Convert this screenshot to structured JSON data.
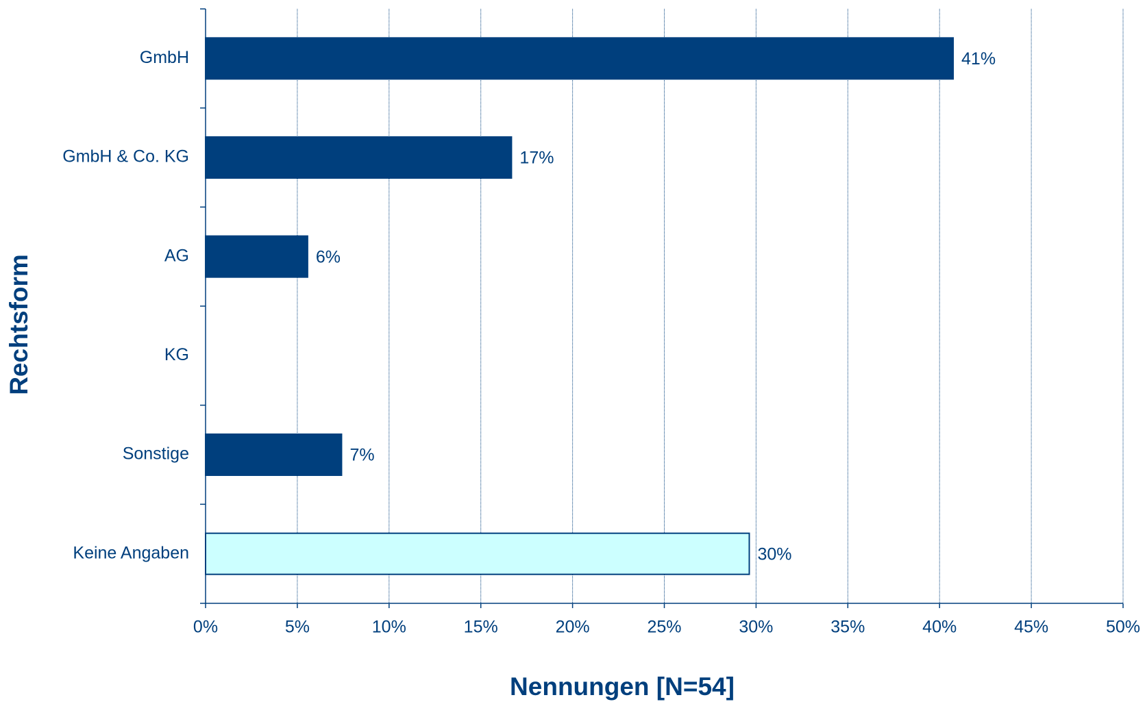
{
  "chart_data": {
    "type": "bar",
    "orientation": "horizontal",
    "xlabel": "Nennungen [N=54]",
    "ylabel": "Rechtsform",
    "categories": [
      "GmbH",
      "GmbH & Co. KG",
      "AG",
      "KG",
      "Sonstige",
      "Keine Angaben"
    ],
    "values": [
      40.74,
      16.67,
      5.56,
      null,
      7.41,
      29.63
    ],
    "value_labels": [
      "41%",
      "17%",
      "6%",
      null,
      "7%",
      "30%"
    ],
    "colors": [
      "#003f7d",
      "#003f7d",
      "#003f7d",
      "#003f7d",
      "#003f7d",
      "#ccffff"
    ],
    "xlim": [
      0,
      50
    ],
    "xticks": [
      {
        "value": 0,
        "label": "0%"
      },
      {
        "value": 5,
        "label": "5%"
      },
      {
        "value": 10,
        "label": "10%"
      },
      {
        "value": 15,
        "label": "15%"
      },
      {
        "value": 20,
        "label": "20%"
      },
      {
        "value": 25,
        "label": "25%"
      },
      {
        "value": 30,
        "label": "30%"
      },
      {
        "value": 35,
        "label": "35%"
      },
      {
        "value": 40,
        "label": "40%"
      },
      {
        "value": 45,
        "label": "45%"
      },
      {
        "value": 50,
        "label": "50%"
      }
    ],
    "grid": true
  }
}
